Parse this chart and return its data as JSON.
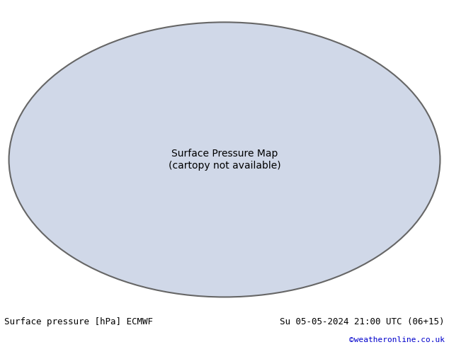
{
  "title_left": "Surface pressure [hPa] ECMWF",
  "title_right": "Su 05-05-2024 21:00 UTC (06+15)",
  "credit": "©weatheronline.co.uk",
  "credit_color": "#0000cc",
  "background_color": "#ffffff",
  "map_background": "#d0d8e8",
  "land_color": "#c8e6c0",
  "ocean_color": "#d0d8e8",
  "border_color": "#888888",
  "contour_black_value": 1013,
  "contour_interval": 4,
  "contour_red_above": 1013,
  "contour_blue_below": 1013,
  "contour_black_color": "#000000",
  "contour_red_color": "#cc0000",
  "contour_blue_color": "#0000cc",
  "label_fontsize": 6,
  "title_fontsize": 9,
  "credit_fontsize": 8,
  "fig_width": 6.34,
  "fig_height": 4.9,
  "dpi": 100
}
